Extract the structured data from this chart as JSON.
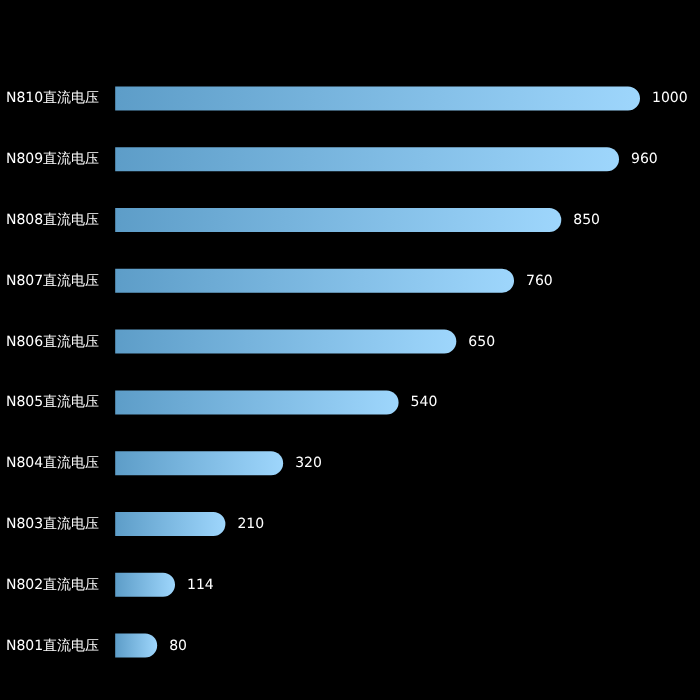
{
  "chart_data": {
    "type": "bar",
    "orientation": "horizontal",
    "categories": [
      "N810直流电压",
      "N809直流电压",
      "N808直流电压",
      "N807直流电压",
      "N806直流电压",
      "N805直流电压",
      "N804直流电压",
      "N803直流电压",
      "N802直流电压",
      "N801直流电压"
    ],
    "values": [
      1000,
      960,
      850,
      760,
      650,
      540,
      320,
      210,
      114,
      80
    ],
    "color": "#74c4fa",
    "data_labels": true,
    "tick_labels": "y"
  }
}
